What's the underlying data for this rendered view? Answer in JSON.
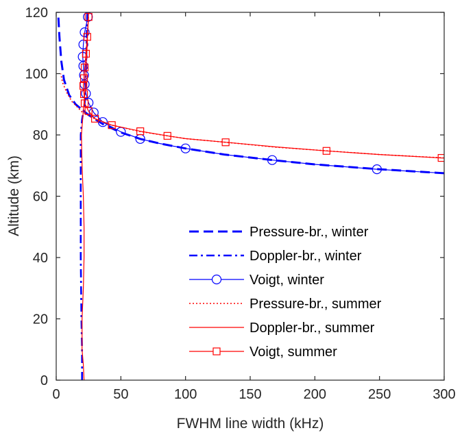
{
  "chart_data": {
    "type": "line",
    "title": "",
    "xlabel": "FWHM line width (kHz)",
    "ylabel": "Altitude (km)",
    "xlim": [
      0,
      300
    ],
    "ylim": [
      0,
      120
    ],
    "x_ticks": [
      "0",
      "50",
      "100",
      "150",
      "200",
      "250",
      "300"
    ],
    "y_ticks": [
      "0",
      "20",
      "40",
      "60",
      "80",
      "100",
      "120"
    ],
    "x_tick_values": [
      0,
      50,
      100,
      150,
      200,
      250,
      300
    ],
    "y_tick_values": [
      0,
      20,
      40,
      60,
      80,
      100,
      120
    ],
    "grid": false,
    "legend_position": "bottom-right",
    "series": [
      {
        "name": "Pressure-br., winter",
        "color": "#0000ff",
        "style": "dashed",
        "marker": "none",
        "points": [
          [
            300,
            67.5
          ],
          [
            250,
            68.8
          ],
          [
            200,
            70.4
          ],
          [
            167,
            71.8
          ],
          [
            130,
            73.6
          ],
          [
            100,
            75.6
          ],
          [
            80,
            77.2
          ],
          [
            65,
            78.7
          ],
          [
            50,
            80.8
          ],
          [
            37,
            83.3
          ],
          [
            25,
            86.5
          ],
          [
            15,
            90
          ],
          [
            10,
            93
          ],
          [
            6,
            98
          ],
          [
            4,
            104
          ],
          [
            2.5,
            112
          ],
          [
            1.5,
            120
          ]
        ]
      },
      {
        "name": "Doppler-br., winter",
        "color": "#0000ff",
        "style": "dashdot",
        "marker": "none",
        "points": [
          [
            20,
            0
          ],
          [
            20,
            10
          ],
          [
            19.5,
            20
          ],
          [
            19,
            40
          ],
          [
            19,
            60
          ],
          [
            19,
            70
          ],
          [
            19,
            80
          ],
          [
            20,
            85
          ],
          [
            22,
            90
          ],
          [
            23,
            100
          ],
          [
            23.5,
            110
          ],
          [
            24,
            120
          ]
        ]
      },
      {
        "name": "Voigt, winter",
        "color": "#0000ff",
        "style": "solid",
        "marker": "circle",
        "markers": [
          [
            248,
            68.8
          ],
          [
            167,
            71.8
          ],
          [
            100,
            75.6
          ],
          [
            65,
            78.7
          ],
          [
            50,
            81
          ],
          [
            36,
            84.2
          ],
          [
            29,
            87.3
          ],
          [
            25,
            90.5
          ],
          [
            23,
            93.5
          ],
          [
            22,
            96.5
          ],
          [
            21.5,
            99.5
          ],
          [
            21,
            102.5
          ],
          [
            20.5,
            105.5
          ],
          [
            21,
            109.5
          ],
          [
            22,
            113.5
          ],
          [
            24.5,
            118.5
          ]
        ],
        "points": [
          [
            300,
            67.5
          ],
          [
            248,
            68.8
          ],
          [
            200,
            70.4
          ],
          [
            167,
            71.8
          ],
          [
            130,
            73.6
          ],
          [
            100,
            75.6
          ],
          [
            80,
            77.2
          ],
          [
            65,
            78.7
          ],
          [
            50,
            81
          ],
          [
            36,
            84.2
          ],
          [
            29,
            87.3
          ],
          [
            25,
            90.5
          ],
          [
            23,
            93.5
          ],
          [
            22,
            96.5
          ],
          [
            21.5,
            99.5
          ],
          [
            21,
            102.5
          ],
          [
            20.5,
            105.5
          ],
          [
            21,
            109.5
          ],
          [
            22,
            113.5
          ],
          [
            24.5,
            118.5
          ]
        ]
      },
      {
        "name": "Pressure-br., summer",
        "color": "#ff0000",
        "style": "dotted",
        "marker": "none",
        "points": [
          [
            300,
            72.5
          ],
          [
            250,
            73.6
          ],
          [
            210,
            74.8
          ],
          [
            170,
            76
          ],
          [
            131,
            77.6
          ],
          [
            100,
            78.8
          ],
          [
            86,
            79.7
          ],
          [
            65,
            81.1
          ],
          [
            43,
            83.2
          ],
          [
            30,
            85.2
          ],
          [
            20,
            87.5
          ],
          [
            12,
            91
          ],
          [
            8,
            94
          ],
          [
            5,
            97
          ],
          [
            3.5,
            100
          ]
        ]
      },
      {
        "name": "Doppler-br., summer",
        "color": "#ff0000",
        "style": "solid",
        "marker": "none",
        "points": [
          [
            21.5,
            0
          ],
          [
            21,
            5
          ],
          [
            20,
            10
          ],
          [
            20,
            20
          ],
          [
            21,
            30
          ],
          [
            21.5,
            40
          ],
          [
            21.5,
            50
          ],
          [
            21,
            60
          ],
          [
            20,
            70
          ],
          [
            19.5,
            80
          ],
          [
            21,
            88
          ],
          [
            22.5,
            95
          ],
          [
            23,
            100
          ],
          [
            24,
            110
          ],
          [
            25,
            120
          ]
        ]
      },
      {
        "name": "Voigt, summer",
        "color": "#ff0000",
        "style": "solid",
        "marker": "square",
        "markers": [
          [
            298,
            72.5
          ],
          [
            209,
            74.8
          ],
          [
            131,
            77.6
          ],
          [
            86,
            79.7
          ],
          [
            65,
            81.2
          ],
          [
            43,
            83.2
          ],
          [
            30,
            85.3
          ],
          [
            25,
            87.8
          ],
          [
            22,
            90.3
          ],
          [
            21.5,
            93.3
          ],
          [
            21,
            96
          ],
          [
            21.5,
            98.5
          ],
          [
            22,
            102
          ],
          [
            23,
            106.5
          ],
          [
            24,
            112
          ],
          [
            25,
            118.5
          ]
        ],
        "points": [
          [
            300,
            72.5
          ],
          [
            298,
            72.5
          ],
          [
            250,
            73.6
          ],
          [
            209,
            74.8
          ],
          [
            170,
            76.1
          ],
          [
            131,
            77.6
          ],
          [
            100,
            78.8
          ],
          [
            86,
            79.7
          ],
          [
            65,
            81.2
          ],
          [
            43,
            83.2
          ],
          [
            30,
            85.3
          ],
          [
            25,
            87.8
          ],
          [
            22,
            90.3
          ],
          [
            21.5,
            93.3
          ],
          [
            21,
            96
          ],
          [
            21.5,
            98.5
          ],
          [
            22,
            102
          ],
          [
            23,
            106.5
          ],
          [
            24,
            112
          ],
          [
            25,
            118.5
          ]
        ]
      }
    ]
  }
}
